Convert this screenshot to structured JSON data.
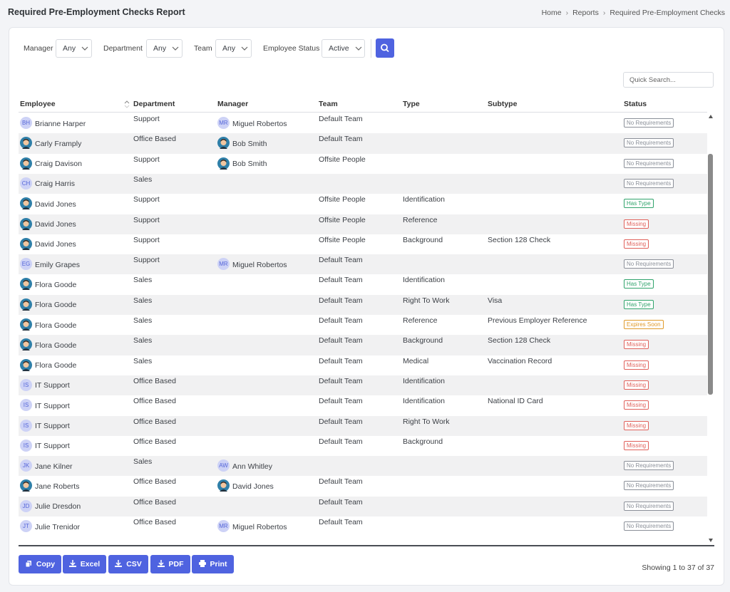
{
  "header": {
    "title": "Required Pre-Employment Checks Report",
    "breadcrumb": [
      "Home",
      "Reports",
      "Required Pre-Employment Checks"
    ]
  },
  "filters": [
    {
      "label": "Manager",
      "value": "Any"
    },
    {
      "label": "Department",
      "value": "Any"
    },
    {
      "label": "Team",
      "value": "Any"
    },
    {
      "label": "Employee Status",
      "value": "Active"
    }
  ],
  "search_placeholder": "Quick Search...",
  "status_colors": {
    "No Requirements": "#8a8f98",
    "Has Type": "#2fa36b",
    "Missing": "#e0605a",
    "Expires Soon": "#e09a2a"
  },
  "table": {
    "columns": [
      "Employee",
      "Department",
      "Manager",
      "Team",
      "Type",
      "Subtype",
      "Status"
    ],
    "rows": [
      {
        "employee": "Brianne Harper",
        "employee_initials": "BH",
        "department": "Support",
        "manager": "Miguel Robertos",
        "manager_initials": "MR",
        "team": "Default Team",
        "status": "No Requirements"
      },
      {
        "employee": "Carly Framply",
        "department": "Office Based",
        "manager": "Bob Smith",
        "team": "Default Team",
        "status": "No Requirements"
      },
      {
        "employee": "Craig Davison",
        "department": "Support",
        "manager": "Bob Smith",
        "team": "Offsite People",
        "status": "No Requirements"
      },
      {
        "employee": "Craig Harris",
        "employee_initials": "CH",
        "department": "Sales",
        "status": "No Requirements"
      },
      {
        "employee": "David Jones",
        "department": "Support",
        "team": "Offsite People",
        "type": "Identification",
        "status": "Has Type"
      },
      {
        "employee": "David Jones",
        "department": "Support",
        "team": "Offsite People",
        "type": "Reference",
        "status": "Missing"
      },
      {
        "employee": "David Jones",
        "department": "Support",
        "team": "Offsite People",
        "type": "Background",
        "subtype": "Section 128 Check",
        "status": "Missing"
      },
      {
        "employee": "Emily Grapes",
        "employee_initials": "EG",
        "department": "Support",
        "manager": "Miguel Robertos",
        "manager_initials": "MR",
        "team": "Default Team",
        "status": "No Requirements"
      },
      {
        "employee": "Flora Goode",
        "department": "Sales",
        "team": "Default Team",
        "type": "Identification",
        "status": "Has Type"
      },
      {
        "employee": "Flora Goode",
        "department": "Sales",
        "team": "Default Team",
        "type": "Right To Work",
        "subtype": "Visa",
        "status": "Has Type"
      },
      {
        "employee": "Flora Goode",
        "department": "Sales",
        "team": "Default Team",
        "type": "Reference",
        "subtype": "Previous Employer Reference",
        "status": "Expires Soon"
      },
      {
        "employee": "Flora Goode",
        "department": "Sales",
        "team": "Default Team",
        "type": "Background",
        "subtype": "Section 128 Check",
        "status": "Missing"
      },
      {
        "employee": "Flora Goode",
        "department": "Sales",
        "team": "Default Team",
        "type": "Medical",
        "subtype": "Vaccination Record",
        "status": "Missing"
      },
      {
        "employee": "IT Support",
        "employee_initials": "IS",
        "department": "Office Based",
        "team": "Default Team",
        "type": "Identification",
        "status": "Missing"
      },
      {
        "employee": "IT Support",
        "employee_initials": "IS",
        "department": "Office Based",
        "team": "Default Team",
        "type": "Identification",
        "subtype": "National ID Card",
        "status": "Missing"
      },
      {
        "employee": "IT Support",
        "employee_initials": "IS",
        "department": "Office Based",
        "team": "Default Team",
        "type": "Right To Work",
        "status": "Missing"
      },
      {
        "employee": "IT Support",
        "employee_initials": "IS",
        "department": "Office Based",
        "team": "Default Team",
        "type": "Background",
        "status": "Missing"
      },
      {
        "employee": "Jane Kilner",
        "employee_initials": "JK",
        "department": "Sales",
        "manager": "Ann Whitley",
        "manager_initials": "AW",
        "status": "No Requirements"
      },
      {
        "employee": "Jane Roberts",
        "department": "Office Based",
        "manager": "David Jones",
        "team": "Default Team",
        "status": "No Requirements"
      },
      {
        "employee": "Julie Dresdon",
        "employee_initials": "JD",
        "department": "Office Based",
        "team": "Default Team",
        "status": "No Requirements"
      },
      {
        "employee": "Julie Trenidor",
        "employee_initials": "JT",
        "department": "Office Based",
        "manager": "Miguel Robertos",
        "manager_initials": "MR",
        "team": "Default Team",
        "status": "No Requirements"
      }
    ]
  },
  "buttons": [
    "Copy",
    "Excel",
    "CSV",
    "PDF",
    "Print"
  ],
  "footer": "Showing 1 to 37 of 37"
}
